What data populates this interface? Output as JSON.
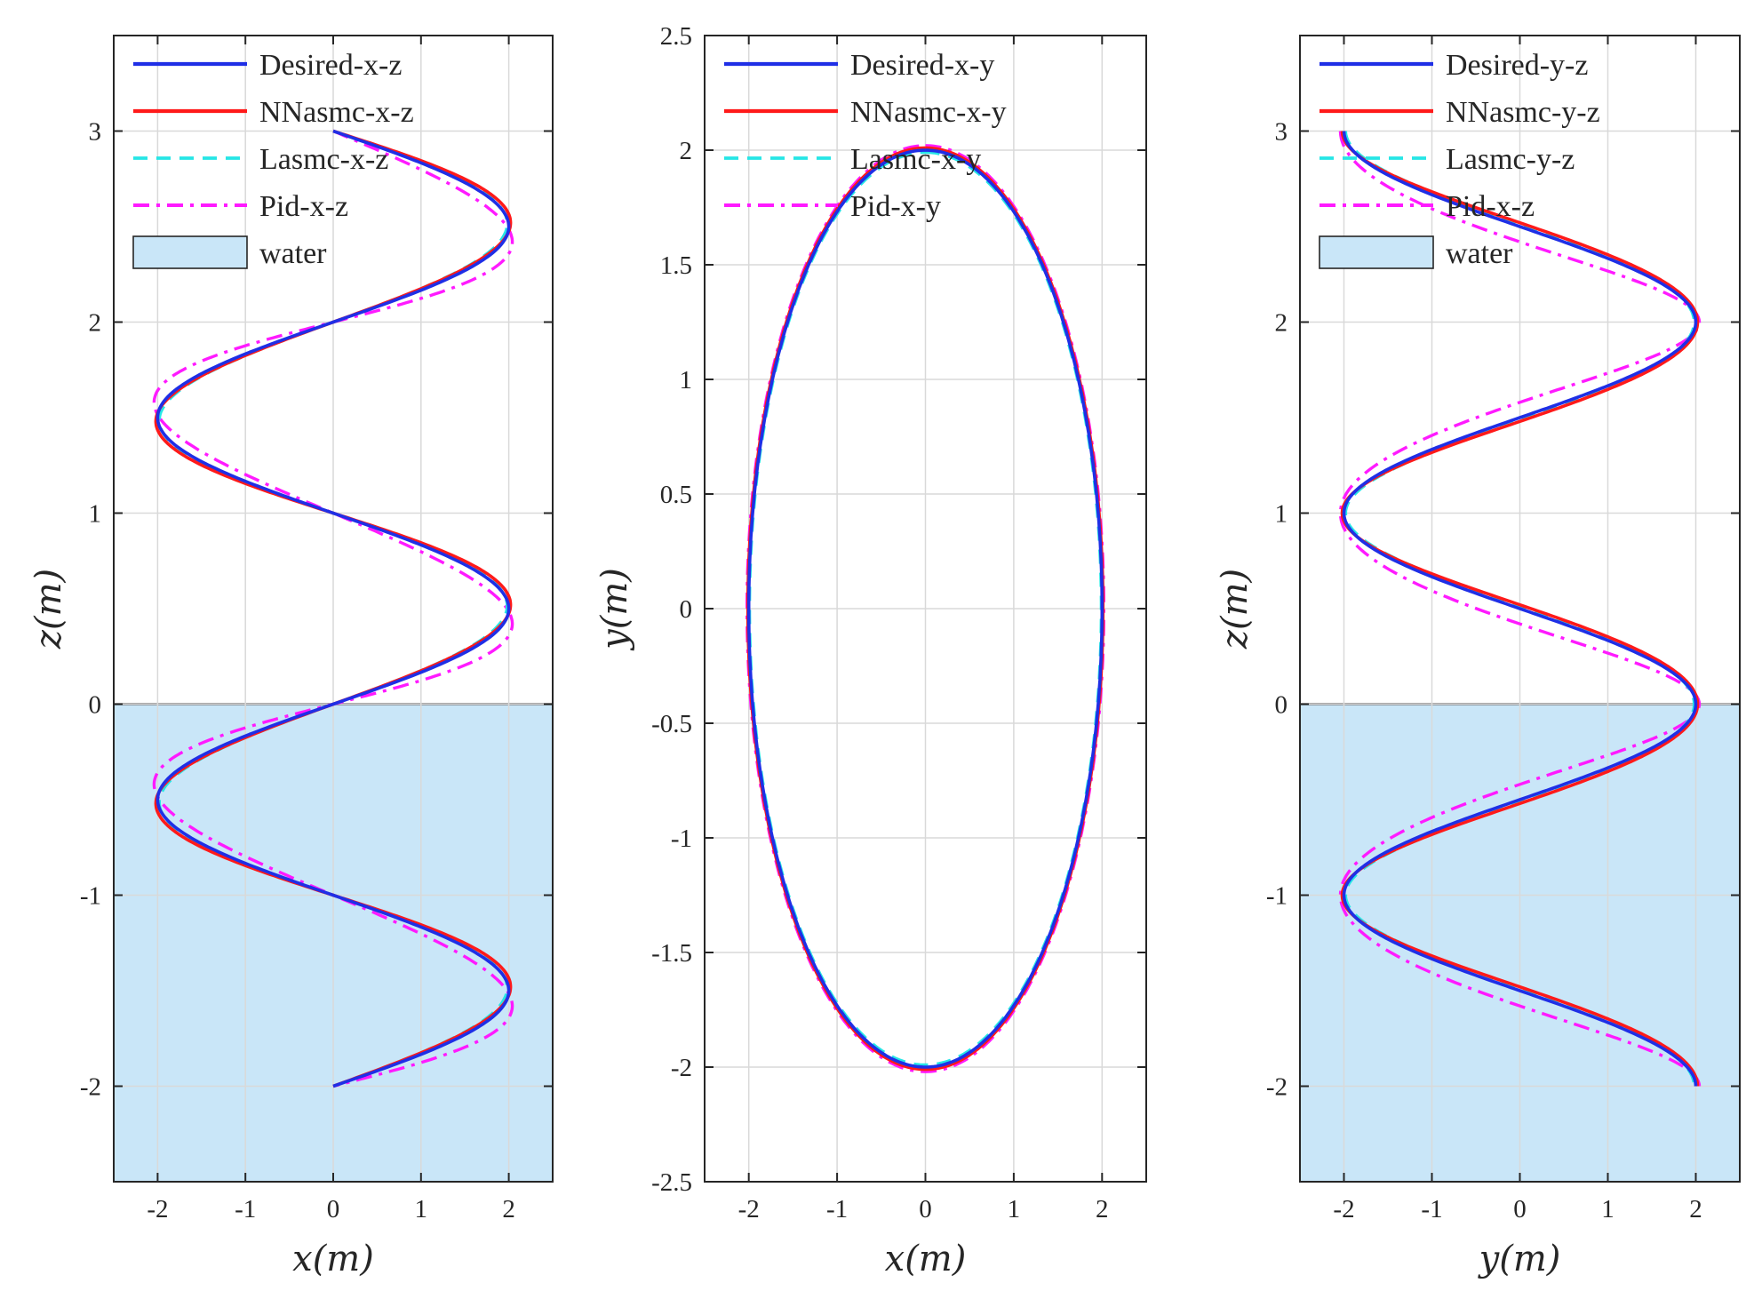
{
  "chart_data": [
    {
      "type": "line",
      "title": "",
      "xlabel": "x(m)",
      "ylabel": "z(m)",
      "xlim": [
        -2.5,
        2.5
      ],
      "ylim": [
        -2.5,
        3.5
      ],
      "xticks": [
        -2,
        -1,
        0,
        1,
        2
      ],
      "yticks": [
        -2,
        -1,
        0,
        1,
        2,
        3
      ],
      "grid": true,
      "water": {
        "label": "water",
        "z_top": 0,
        "color": "#c9e6f8"
      },
      "legend_position": "top-left",
      "series": [
        {
          "name": "Desired-x-z",
          "color": "#1f2fe6",
          "style": "solid",
          "curve": "helix-side",
          "param": "cos",
          "amp": 2,
          "z_start": 3,
          "z_end": -2,
          "turns": 2.5,
          "amp_error": 0,
          "z_error": 0
        },
        {
          "name": "NNasmc-x-z",
          "color": "#ff1a1a",
          "style": "solid",
          "curve": "helix-side",
          "param": "cos",
          "amp": 2,
          "z_start": 3,
          "z_end": -2,
          "turns": 2.5,
          "amp_error": 0.02,
          "z_error": 0.02
        },
        {
          "name": "Lasmc-x-z",
          "color": "#26e6e6",
          "style": "dashed",
          "curve": "helix-side",
          "param": "cos",
          "amp": 2,
          "z_start": 3,
          "z_end": -2,
          "turns": 2.5,
          "amp_error": -0.02,
          "z_error": 0.015
        },
        {
          "name": "Pid-x-z",
          "color": "#ff1aff",
          "style": "dashdot",
          "curve": "helix-side",
          "param": "cos",
          "amp": 2,
          "z_start": 3,
          "z_end": -2,
          "turns": 2.5,
          "amp_error": 0.04,
          "z_error": -0.08
        }
      ]
    },
    {
      "type": "line",
      "title": "",
      "xlabel": "x(m)",
      "ylabel": "y(m)",
      "xlim": [
        -2.5,
        2.5
      ],
      "ylim": [
        -2.5,
        2.5
      ],
      "xticks": [
        -2,
        -1,
        0,
        1,
        2
      ],
      "yticks": [
        -2.5,
        -2,
        -1.5,
        -1,
        -0.5,
        0,
        0.5,
        1,
        1.5,
        2,
        2.5
      ],
      "grid": true,
      "legend_position": "top-left",
      "series": [
        {
          "name": "Desired-x-y",
          "color": "#1f2fe6",
          "style": "solid",
          "curve": "ellipse",
          "amp_x": 2,
          "amp_y": 2,
          "offset": 0
        },
        {
          "name": "NNasmc-x-y",
          "color": "#ff1a1a",
          "style": "solid",
          "curve": "ellipse",
          "amp_x": 2,
          "amp_y": 2,
          "offset": 0.01
        },
        {
          "name": "Lasmc-x-y",
          "color": "#26e6e6",
          "style": "dashed",
          "curve": "ellipse",
          "amp_x": 2,
          "amp_y": 2,
          "offset": -0.01
        },
        {
          "name": "Pid-x-y",
          "color": "#ff1aff",
          "style": "dashdot",
          "curve": "ellipse",
          "amp_x": 2,
          "amp_y": 2,
          "offset": 0.02
        }
      ]
    },
    {
      "type": "line",
      "title": "",
      "xlabel": "y(m)",
      "ylabel": "z(m)",
      "xlim": [
        -2.5,
        2.5
      ],
      "ylim": [
        -2.5,
        3.5
      ],
      "xticks": [
        -2,
        -1,
        0,
        1,
        2
      ],
      "yticks": [
        -2,
        -1,
        0,
        1,
        2,
        3
      ],
      "grid": true,
      "water": {
        "label": "water",
        "z_top": 0,
        "color": "#c9e6f8"
      },
      "legend_position": "top-left",
      "series": [
        {
          "name": "Desired-y-z",
          "color": "#1f2fe6",
          "style": "solid",
          "curve": "helix-side",
          "param": "sin",
          "amp": 2,
          "z_start": 3,
          "z_end": -2,
          "turns": 2.5,
          "amp_error": 0,
          "z_error": 0
        },
        {
          "name": "NNasmc-y-z",
          "color": "#ff1a1a",
          "style": "solid",
          "curve": "helix-side",
          "param": "sin",
          "amp": 2,
          "z_start": 3,
          "z_end": -2,
          "turns": 2.5,
          "amp_error": 0.02,
          "z_error": 0.02
        },
        {
          "name": "Lasmc-y-z",
          "color": "#26e6e6",
          "style": "dashed",
          "curve": "helix-side",
          "param": "sin",
          "amp": 2,
          "z_start": 3,
          "z_end": -2,
          "turns": 2.5,
          "amp_error": -0.02,
          "z_error": 0.015
        },
        {
          "name": "Pid-x-z",
          "color": "#ff1aff",
          "style": "dashdot",
          "curve": "helix-side",
          "param": "sin",
          "amp": 2,
          "z_start": 3,
          "z_end": -2,
          "turns": 2.5,
          "amp_error": 0.04,
          "z_error": -0.08
        }
      ]
    }
  ]
}
